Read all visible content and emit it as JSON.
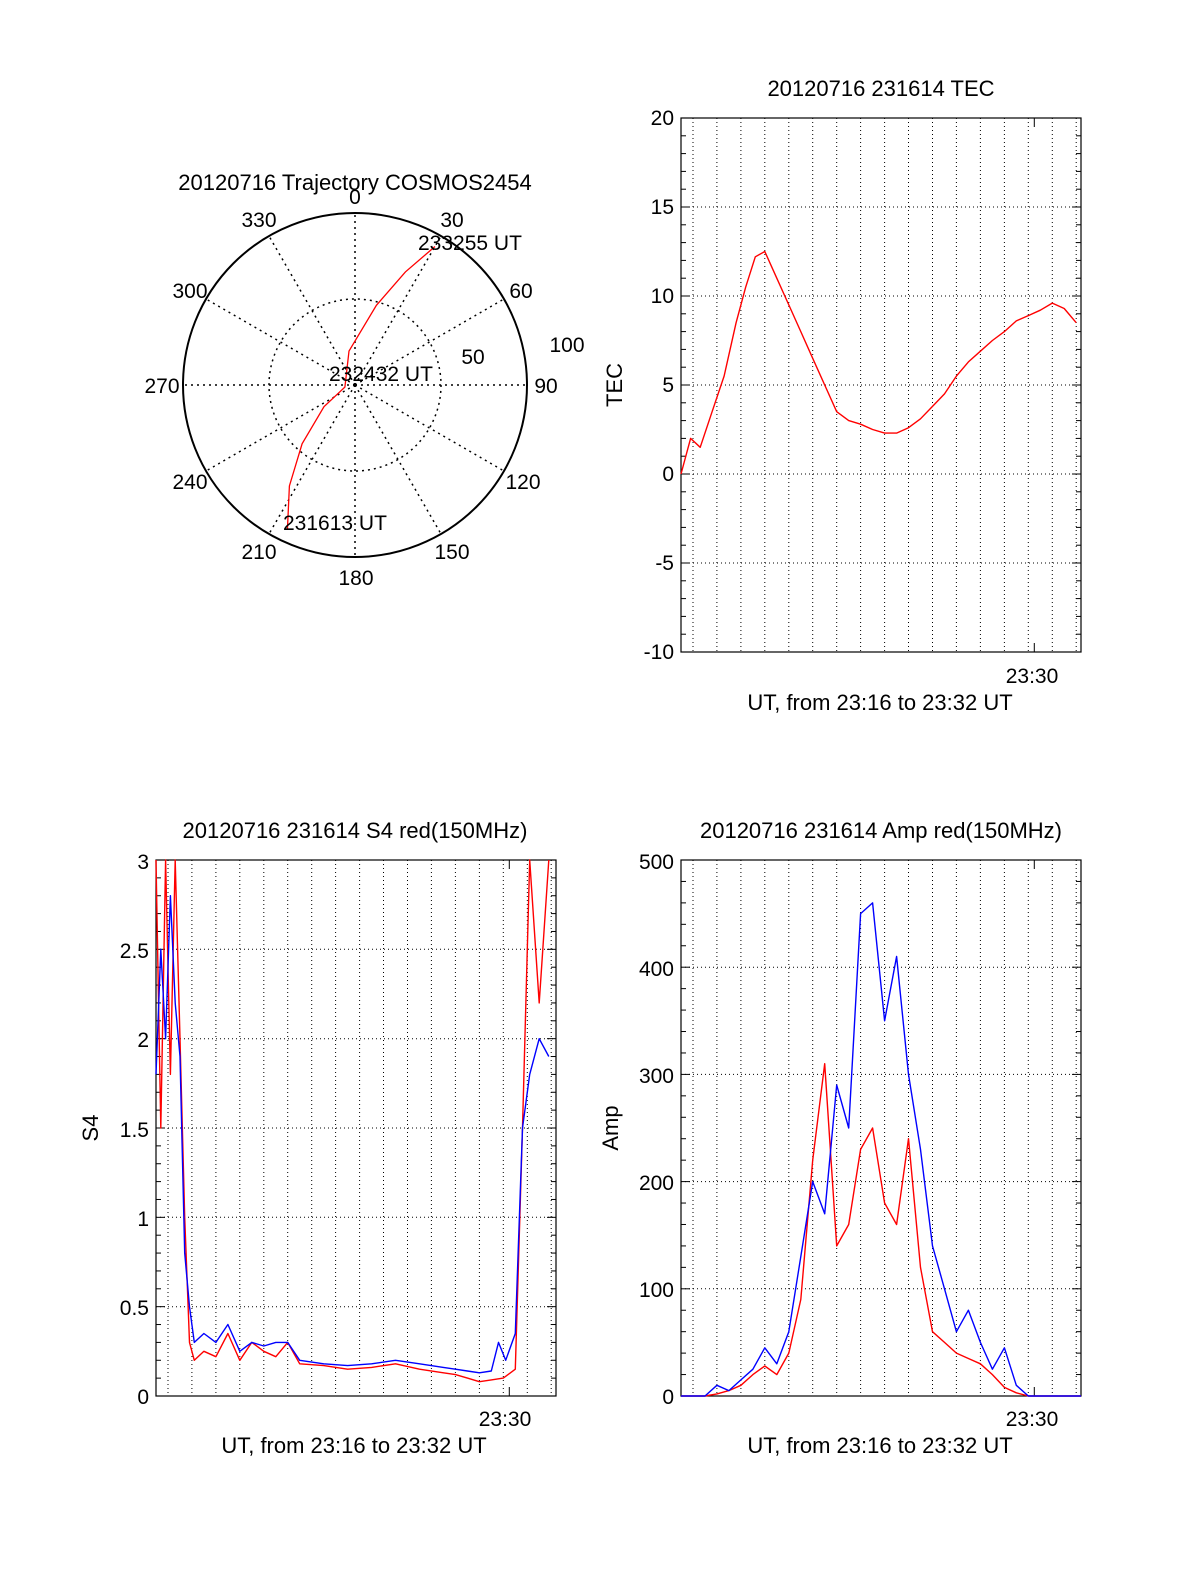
{
  "chart_data": [
    {
      "type": "polar",
      "title": "20120716 Trajectory COSMOS2454",
      "angle_ticks": [
        "0",
        "30",
        "60",
        "90",
        "120",
        "150",
        "180",
        "210",
        "240",
        "270",
        "300",
        "330"
      ],
      "radial_ticks": [
        "50",
        "100"
      ],
      "rlim": [
        0,
        100
      ],
      "grid": true,
      "annotations": [
        "233255 UT",
        "232432 UT",
        "231613 UT"
      ],
      "series": [
        {
          "color": "#ff0000",
          "points": [
            [
              205,
              93
            ],
            [
              213,
              70
            ],
            [
              222,
              46
            ],
            [
              235,
              22
            ],
            [
              258,
              6
            ],
            [
              350,
              20
            ],
            [
              15,
              48
            ],
            [
              24,
              72
            ],
            [
              30,
              93
            ]
          ]
        }
      ]
    },
    {
      "type": "line",
      "title": "20120716 231614 TEC",
      "xlabel": "UT, from 23:16 to 23:32 UT",
      "ylabel": "TEC",
      "xlim": [
        0,
        16.7
      ],
      "ylim": [
        -10,
        20
      ],
      "yticks": [
        "-10",
        "-5",
        "0",
        "5",
        "10",
        "15",
        "20"
      ],
      "xtick_label": "23:30",
      "xtick_value": 14.75,
      "grid": true,
      "series": [
        {
          "color": "#ff0000",
          "x": [
            0.0,
            0.4,
            0.8,
            1.3,
            1.8,
            2.3,
            2.7,
            3.1,
            3.5,
            4.0,
            4.5,
            5.0,
            5.5,
            6.0,
            6.5,
            7.0,
            7.5,
            8.0,
            8.5,
            9.0,
            9.5,
            10.0,
            10.5,
            11.0,
            11.5,
            12.0,
            12.5,
            13.0,
            13.5,
            14.0,
            14.5,
            15.0,
            15.5,
            16.0,
            16.5
          ],
          "y": [
            0.0,
            2.0,
            1.5,
            3.5,
            5.5,
            8.5,
            10.5,
            12.2,
            12.5,
            11.0,
            9.5,
            8.0,
            6.5,
            5.0,
            3.5,
            3.0,
            2.8,
            2.5,
            2.3,
            2.3,
            2.6,
            3.1,
            3.8,
            4.5,
            5.5,
            6.3,
            6.9,
            7.5,
            8.0,
            8.6,
            8.9,
            9.2,
            9.6,
            9.3,
            8.5
          ]
        }
      ]
    },
    {
      "type": "line",
      "title": "20120716 231614 S4 red(150MHz)",
      "xlabel": "UT, from 23:16 to 23:32 UT",
      "ylabel": "S4",
      "xlim": [
        0,
        16.7
      ],
      "ylim": [
        0,
        3
      ],
      "yticks": [
        "0",
        "0.5",
        "1",
        "1.5",
        "2",
        "2.5",
        "3"
      ],
      "xtick_label": "23:30",
      "xtick_value": 14.75,
      "grid": true,
      "series": [
        {
          "color": "#ff0000",
          "x": [
            0.0,
            0.2,
            0.4,
            0.6,
            0.8,
            1.0,
            1.2,
            1.4,
            1.6,
            2.0,
            2.5,
            3.0,
            3.5,
            4.0,
            4.5,
            5.0,
            5.5,
            6.0,
            7.0,
            8.0,
            9.0,
            10.0,
            11.0,
            12.0,
            12.5,
            13.0,
            13.5,
            14.0,
            14.5,
            15.0,
            15.3,
            15.6,
            16.0,
            16.4
          ],
          "y": [
            3.0,
            1.5,
            3.0,
            1.8,
            3.0,
            2.0,
            1.0,
            0.3,
            0.2,
            0.25,
            0.22,
            0.35,
            0.2,
            0.3,
            0.25,
            0.22,
            0.3,
            0.18,
            0.17,
            0.15,
            0.16,
            0.18,
            0.15,
            0.13,
            0.12,
            0.1,
            0.08,
            0.09,
            0.1,
            0.15,
            1.5,
            3.0,
            2.2,
            3.0
          ]
        },
        {
          "color": "#0000ff",
          "x": [
            0.0,
            0.2,
            0.4,
            0.6,
            0.8,
            1.0,
            1.2,
            1.4,
            1.6,
            2.0,
            2.5,
            3.0,
            3.5,
            4.0,
            4.5,
            5.0,
            5.5,
            6.0,
            7.0,
            8.0,
            9.0,
            10.0,
            11.0,
            12.0,
            12.5,
            13.0,
            13.5,
            14.0,
            14.3,
            14.6,
            15.0,
            15.3,
            15.6,
            16.0,
            16.4
          ],
          "y": [
            1.8,
            2.5,
            2.0,
            2.8,
            2.2,
            1.9,
            0.8,
            0.5,
            0.3,
            0.35,
            0.3,
            0.4,
            0.25,
            0.3,
            0.28,
            0.3,
            0.3,
            0.2,
            0.18,
            0.17,
            0.18,
            0.2,
            0.18,
            0.16,
            0.15,
            0.14,
            0.13,
            0.14,
            0.3,
            0.2,
            0.35,
            1.5,
            1.8,
            2.0,
            1.9
          ]
        }
      ]
    },
    {
      "type": "line",
      "title": "20120716 231614 Amp red(150MHz)",
      "xlabel": "UT, from 23:16 to 23:32 UT",
      "ylabel": "Amp",
      "xlim": [
        0,
        16.7
      ],
      "ylim": [
        0,
        500
      ],
      "yticks": [
        "0",
        "100",
        "200",
        "300",
        "400",
        "500"
      ],
      "xtick_label": "23:30",
      "xtick_value": 14.75,
      "grid": true,
      "series": [
        {
          "color": "#ff0000",
          "x": [
            0.0,
            1.0,
            1.5,
            2.0,
            2.5,
            3.0,
            3.5,
            4.0,
            4.5,
            5.0,
            5.5,
            6.0,
            6.5,
            7.0,
            7.5,
            8.0,
            8.5,
            9.0,
            9.5,
            10.0,
            10.5,
            11.0,
            11.5,
            12.0,
            12.5,
            13.0,
            13.5,
            14.0,
            14.5,
            15.0,
            15.5,
            16.0,
            16.7
          ],
          "y": [
            0,
            0,
            2,
            5,
            10,
            20,
            28,
            20,
            40,
            90,
            220,
            310,
            140,
            160,
            230,
            250,
            180,
            160,
            240,
            120,
            60,
            50,
            40,
            35,
            30,
            20,
            8,
            3,
            0,
            0,
            0,
            0,
            0
          ]
        },
        {
          "color": "#0000ff",
          "x": [
            0.0,
            1.0,
            1.5,
            2.0,
            2.5,
            3.0,
            3.5,
            4.0,
            4.5,
            5.0,
            5.5,
            6.0,
            6.5,
            7.0,
            7.5,
            8.0,
            8.5,
            9.0,
            9.5,
            10.0,
            10.5,
            11.0,
            11.5,
            12.0,
            12.5,
            13.0,
            13.5,
            14.0,
            14.5,
            15.0,
            15.5,
            16.0,
            16.7
          ],
          "y": [
            0,
            0,
            10,
            5,
            15,
            25,
            45,
            30,
            60,
            130,
            200,
            170,
            290,
            250,
            450,
            460,
            350,
            410,
            300,
            230,
            140,
            100,
            60,
            80,
            50,
            25,
            45,
            10,
            0,
            0,
            0,
            0,
            0
          ]
        }
      ]
    }
  ]
}
